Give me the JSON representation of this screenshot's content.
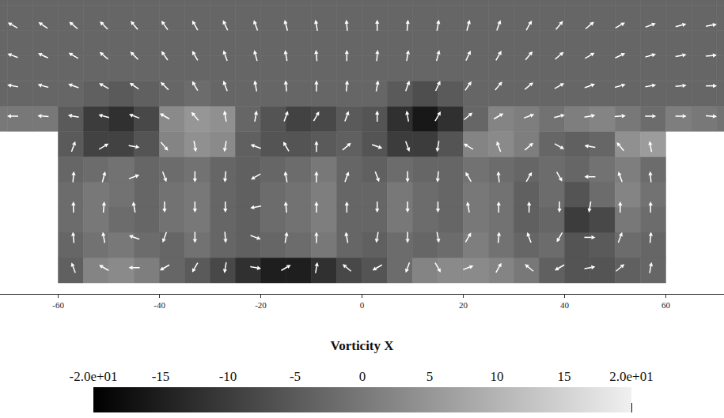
{
  "chart_data": {
    "type": "vector_field",
    "xlim": [
      -71.5,
      71.5
    ],
    "ylim": [
      -2.2,
      56
    ],
    "xticks": [
      -60,
      -40,
      -20,
      0,
      20,
      40,
      60
    ],
    "tick_labels": "x",
    "grid": false,
    "color": "#ffffff",
    "field": {
      "x": [
        -72.5,
        -67.5,
        -62.5,
        -57.5,
        -52.5,
        -47.5,
        -42.5,
        -37.5,
        -32.5,
        -27.5,
        -22.5,
        -17.5,
        -12.5,
        -7.5,
        -2.5,
        2.5,
        7.5,
        12.5,
        17.5,
        22.5,
        27.5,
        32.5,
        37.5,
        42.5,
        47.5,
        52.5,
        57.5,
        62.5,
        67.5,
        72.5
      ],
      "y": [
        2.5,
        7.5,
        12.5,
        17.5,
        22.5,
        27.5,
        32.5,
        37.5,
        42.5,
        47.5,
        52.5,
        57.5
      ],
      "values": [
        [
          null,
          null,
          null,
          -4,
          2,
          3,
          1,
          -3,
          -5,
          -8,
          -12,
          -15,
          -15,
          -12,
          -8,
          -6,
          -2,
          2,
          3,
          3,
          2,
          0,
          -4,
          -6,
          -6,
          -4,
          -3,
          null,
          null,
          null
        ],
        [
          null,
          null,
          null,
          -3,
          -1,
          0,
          -2,
          -3,
          -1,
          -3,
          -4,
          -3,
          -2,
          0,
          -3,
          -4,
          -2,
          -3,
          -2,
          1,
          -1,
          -3,
          -2,
          -6,
          -5,
          -2,
          -3,
          null,
          null,
          null
        ],
        [
          null,
          null,
          null,
          -2,
          0,
          -2,
          -3,
          -1,
          0,
          -3,
          -4,
          -2,
          -1,
          1,
          -3,
          -3,
          0,
          -2,
          -3,
          0,
          -1,
          -4,
          -3,
          -10,
          -8,
          0,
          -2,
          null,
          null,
          null
        ],
        [
          null,
          null,
          null,
          -2,
          0,
          -1,
          -3,
          -1,
          0,
          -3,
          -4,
          -2,
          -1,
          1,
          -3,
          -3,
          0,
          -2,
          -3,
          0,
          -1,
          -4,
          -2,
          -6,
          -2,
          2,
          -1,
          null,
          null,
          null
        ],
        [
          null,
          null,
          null,
          -3,
          -2,
          -1,
          -3,
          -2,
          -1,
          -3,
          -4,
          -3,
          -2,
          0,
          -3,
          -4,
          -2,
          -3,
          -3,
          -1,
          -2,
          -3,
          -2,
          -3,
          -1,
          1,
          -2,
          null,
          null,
          null
        ],
        [
          null,
          null,
          null,
          -5,
          -9,
          -9,
          -6,
          2,
          4,
          3,
          -4,
          -6,
          -6,
          -5,
          -4,
          -6,
          -10,
          -10,
          -6,
          2,
          3,
          1,
          -3,
          -4,
          -3,
          4,
          6,
          null,
          null,
          null
        ],
        [
          0,
          0,
          0,
          -5,
          -10,
          -12,
          -8,
          3,
          5,
          4,
          -3,
          -6,
          -9,
          -8,
          -5,
          -6,
          -12,
          -16,
          -12,
          -3,
          2,
          1,
          -1,
          1,
          2,
          0,
          -2,
          1,
          0,
          -1
        ],
        [
          -3,
          -3,
          -3,
          -3,
          -4,
          -5,
          -4,
          -3,
          -2,
          -3,
          -3,
          -3,
          -3,
          -3,
          -3,
          -3,
          -5,
          -7,
          -5,
          -3,
          -3,
          -3,
          -3,
          -3,
          -3,
          -3,
          -3,
          -3,
          -3,
          -3
        ],
        [
          -3,
          -3,
          -3,
          -3,
          -3,
          -3,
          -3,
          -3,
          -3,
          -3,
          -3,
          -3,
          -3,
          -3,
          -3,
          -3,
          -3,
          -3,
          -3,
          -3,
          -3,
          -3,
          -3,
          -3,
          -3,
          -3,
          -3,
          -3,
          -3,
          -3
        ],
        [
          -3,
          -3,
          -3,
          -3,
          -3,
          -3,
          -3,
          -3,
          -3,
          -3,
          -3,
          -3,
          -3,
          -3,
          -3,
          -3,
          -3,
          -3,
          -3,
          -3,
          -3,
          -3,
          -3,
          -3,
          -3,
          -3,
          -3,
          -3,
          -3,
          -3
        ],
        [
          -3,
          -3,
          -3,
          -3,
          -3,
          -3,
          -3,
          -3,
          -3,
          -3,
          -3,
          -3,
          -3,
          -3,
          -3,
          -3,
          -3,
          -3,
          -3,
          -3,
          -3,
          -3,
          -3,
          -3,
          -3,
          -3,
          -3,
          -3,
          -3,
          -3
        ],
        [
          -3,
          -3,
          -3,
          -3,
          -3,
          -3,
          -3,
          -3,
          -3,
          -3,
          -3,
          -3,
          -3,
          -3,
          -3,
          -3,
          -3,
          -3,
          -3,
          -3,
          -3,
          -3,
          -3,
          -3,
          -3,
          -3,
          -3,
          -3,
          -3,
          -3
        ]
      ]
    },
    "colorbar": {
      "title": "Vorticity X",
      "range": [
        -20,
        20
      ],
      "ticks": [
        {
          "value": -20,
          "label": "-2.0e+01"
        },
        -15,
        -10,
        -5,
        0,
        5,
        10,
        15,
        {
          "value": 20,
          "label": "2.0e+01"
        }
      ]
    },
    "arrows": [
      {
        "x": [
          -57,
          -51,
          -45,
          -39,
          -33,
          -27,
          -21,
          -15,
          -9,
          -3,
          3,
          9,
          15,
          21,
          27,
          33,
          39,
          45,
          51,
          57
        ],
        "y": [
          3,
          9,
          15,
          21,
          27
        ],
        "angle": [
          [
            110,
            150,
            180,
            -150,
            -120,
            -100,
            -10,
            30,
            80,
            140,
            -150,
            -110,
            -60,
            20,
            60,
            140,
            -150,
            10,
            40,
            80
          ],
          [
            95,
            100,
            160,
            -110,
            -90,
            -85,
            -20,
            80,
            90,
            100,
            -100,
            -90,
            -80,
            60,
            85,
            110,
            -120,
            0,
            70,
            85
          ],
          [
            90,
            85,
            100,
            -90,
            -90,
            -90,
            -170,
            95,
            90,
            90,
            -90,
            -90,
            -90,
            100,
            90,
            90,
            -90,
            -100,
            90,
            90
          ],
          [
            85,
            75,
            20,
            -70,
            -90,
            -95,
            -150,
            100,
            90,
            70,
            -70,
            -90,
            -95,
            120,
            95,
            60,
            -60,
            180,
            110,
            95
          ],
          [
            70,
            30,
            -10,
            -50,
            -80,
            -100,
            160,
            120,
            90,
            40,
            -20,
            -70,
            -100,
            150,
            110,
            40,
            -30,
            170,
            130,
            100
          ]
        ]
      },
      {
        "x": [
          -69,
          -63,
          -57,
          -51,
          -45,
          -39,
          -33,
          -27,
          -21,
          -15,
          -9,
          -3,
          3,
          9,
          15,
          21,
          27,
          33,
          39,
          45,
          51,
          57,
          63,
          69
        ],
        "y": [
          33,
          39,
          45,
          51
        ],
        "angle": [
          [
            180,
            175,
            170,
            165,
            160,
            150,
            130,
            100,
            80,
            70,
            60,
            70,
            90,
            100,
            60,
            40,
            30,
            20,
            15,
            10,
            5,
            0,
            0,
            -5
          ],
          [
            170,
            165,
            160,
            150,
            145,
            135,
            120,
            110,
            100,
            95,
            90,
            85,
            80,
            70,
            65,
            55,
            50,
            40,
            30,
            20,
            15,
            10,
            5,
            0
          ],
          [
            160,
            155,
            150,
            140,
            135,
            125,
            120,
            110,
            105,
            100,
            95,
            90,
            85,
            80,
            75,
            65,
            60,
            50,
            40,
            30,
            25,
            15,
            10,
            5
          ],
          [
            150,
            145,
            140,
            135,
            130,
            125,
            120,
            115,
            110,
            105,
            100,
            95,
            90,
            85,
            80,
            75,
            70,
            60,
            50,
            40,
            30,
            20,
            15,
            10
          ]
        ]
      }
    ]
  }
}
